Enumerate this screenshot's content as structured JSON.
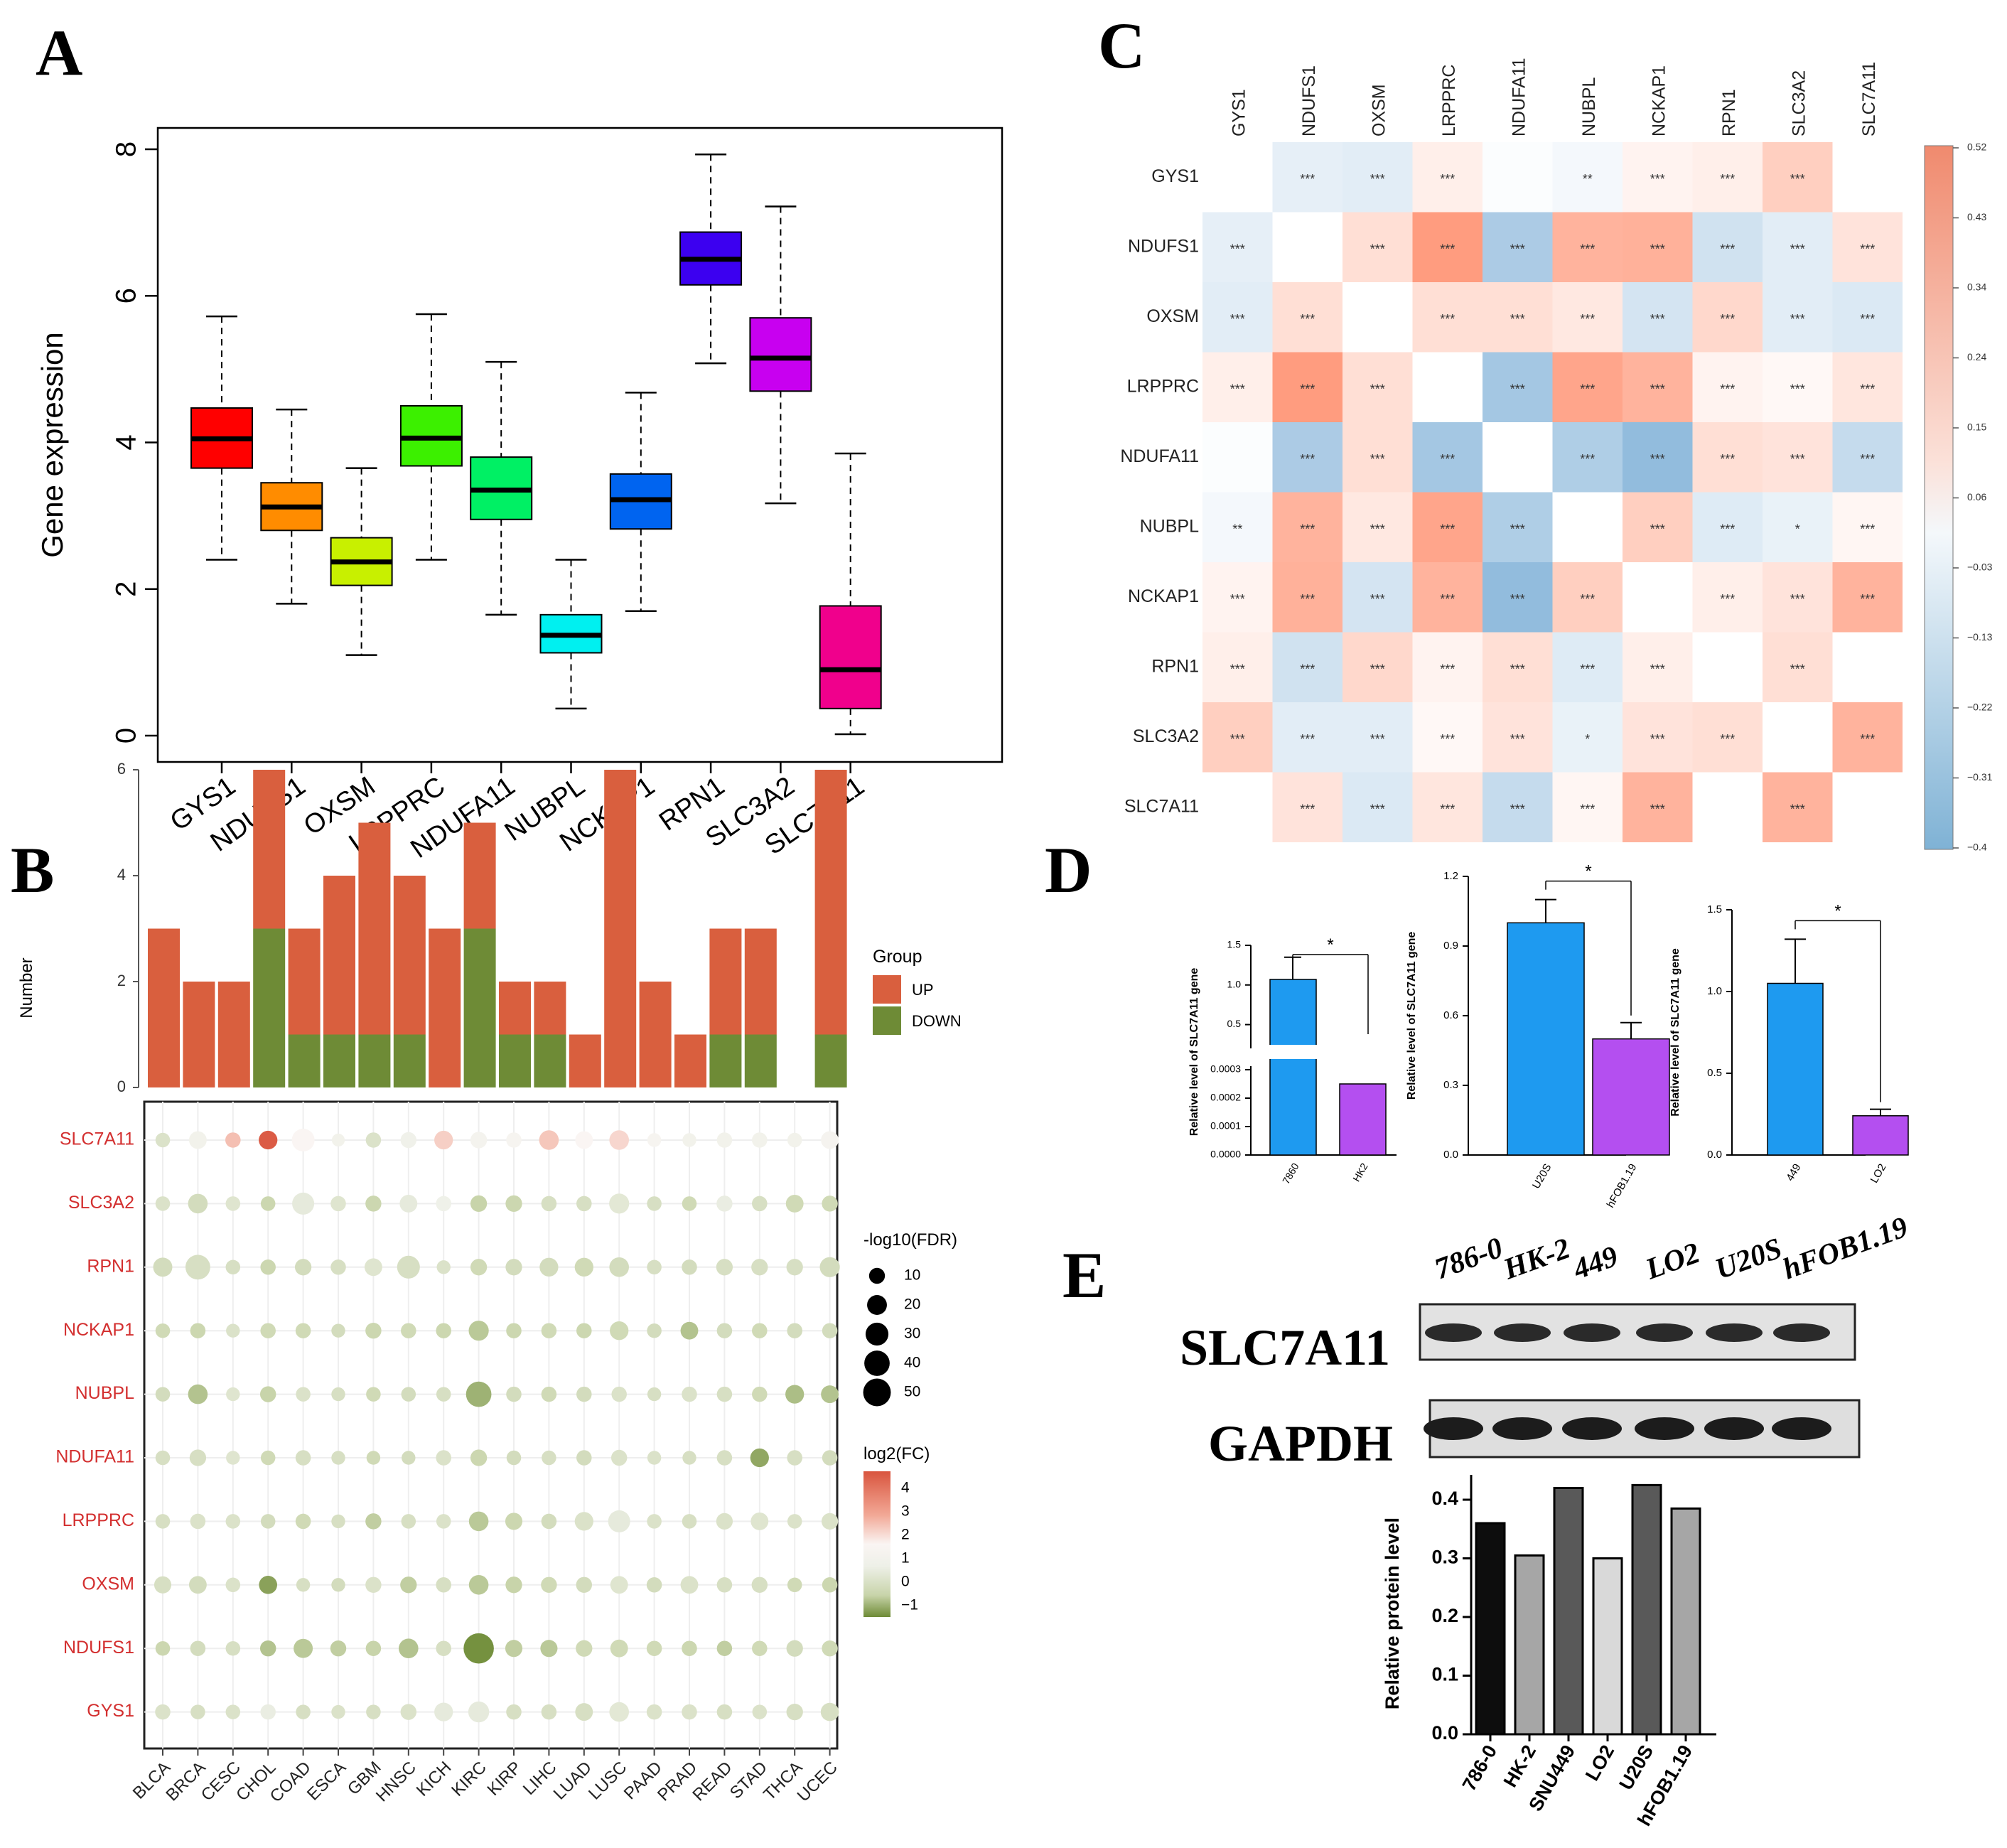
{
  "panel_labels": {
    "A": "A",
    "B": "B",
    "C": "C",
    "D": "D",
    "E": "E"
  },
  "colors": {
    "up": "#d95f3e",
    "down": "#6e8b36",
    "corr_pos": "#f08a6e",
    "corr_neg": "#7fb2d5",
    "bar_786": "#1e9af0",
    "bar_ctrl": "#b44ff0"
  },
  "chart_data": [
    {
      "id": "A",
      "type": "box",
      "ylabel": "Gene expression",
      "xlabel": "",
      "ylim": [
        0,
        8
      ],
      "yticks": [
        "0",
        "2",
        "4",
        "6",
        "8"
      ],
      "categories": [
        "GYS1",
        "NDUFS1",
        "OXSM",
        "LRPPRC",
        "NDUFA11",
        "NUBPL",
        "NCKAP1",
        "RPN1",
        "SLC3A2",
        "SLC7A11"
      ],
      "colors": [
        "#ff0000",
        "#ff8c00",
        "#c8f000",
        "#3cf000",
        "#00f064",
        "#00f0f0",
        "#0064f0",
        "#3c00f0",
        "#c800f0",
        "#f0008c"
      ],
      "boxes": [
        {
          "min": 2.4,
          "q1": 3.65,
          "median": 4.05,
          "q3": 4.47,
          "max": 5.72
        },
        {
          "min": 1.8,
          "q1": 2.8,
          "median": 3.12,
          "q3": 3.45,
          "max": 4.45
        },
        {
          "min": 1.1,
          "q1": 2.05,
          "median": 2.37,
          "q3": 2.7,
          "max": 3.65
        },
        {
          "min": 2.4,
          "q1": 3.68,
          "median": 4.06,
          "q3": 4.5,
          "max": 5.75
        },
        {
          "min": 1.65,
          "q1": 2.95,
          "median": 3.35,
          "q3": 3.8,
          "max": 5.1
        },
        {
          "min": 0.37,
          "q1": 1.13,
          "median": 1.37,
          "q3": 1.65,
          "max": 2.4
        },
        {
          "min": 1.7,
          "q1": 2.82,
          "median": 3.22,
          "q3": 3.57,
          "max": 4.68
        },
        {
          "min": 5.08,
          "q1": 6.15,
          "median": 6.5,
          "q3": 6.87,
          "max": 7.93
        },
        {
          "min": 3.17,
          "q1": 4.7,
          "median": 5.15,
          "q3": 5.7,
          "max": 7.22
        },
        {
          "min": 0.02,
          "q1": 0.37,
          "median": 0.9,
          "q3": 1.77,
          "max": 3.85
        }
      ]
    },
    {
      "id": "B-top",
      "type": "bar",
      "ylabel": "Number",
      "ylim": [
        0,
        6
      ],
      "yticks": [
        "0",
        "2",
        "4",
        "6"
      ],
      "legend_title": "Group",
      "series_names": [
        "UP",
        "DOWN"
      ],
      "categories": [
        "BLCA",
        "BRCA",
        "CESC",
        "CHOL",
        "COAD",
        "ESCA",
        "GBM",
        "HNSC",
        "KICH",
        "KIRC",
        "KIRP",
        "LIHC",
        "LUAD",
        "LUSC",
        "PAAD",
        "PRAD",
        "READ",
        "STAD",
        "THCA",
        "UCEC"
      ],
      "up": [
        3,
        2,
        2,
        3,
        2,
        3,
        4,
        3,
        3,
        2,
        1,
        1,
        1,
        6,
        2,
        1,
        2,
        2,
        0,
        5
      ],
      "down": [
        0,
        0,
        0,
        3,
        1,
        1,
        1,
        1,
        0,
        3,
        1,
        1,
        0,
        0,
        0,
        0,
        1,
        1,
        0,
        1
      ]
    },
    {
      "id": "B-bottom",
      "type": "bubble",
      "genes": [
        "SLC7A11",
        "SLC3A2",
        "RPN1",
        "NCKAP1",
        "NUBPL",
        "NDUFA11",
        "LRPPRC",
        "OXSM",
        "NDUFS1",
        "GYS1"
      ],
      "cancers": [
        "BLCA",
        "BRCA",
        "CESC",
        "CHOL",
        "COAD",
        "ESCA",
        "GBM",
        "HNSC",
        "KICH",
        "KIRC",
        "KIRP",
        "LIHC",
        "LUAD",
        "LUSC",
        "PAAD",
        "PRAD",
        "READ",
        "STAD",
        "THCA",
        "UCEC"
      ],
      "size_legend_title": "-log10(FDR)",
      "size_legend": [
        "10",
        "20",
        "30",
        "40",
        "50"
      ],
      "color_legend_title": "log2(FC)",
      "color_legend": [
        "4",
        "3",
        "2",
        "1",
        "0",
        "−1"
      ],
      "log2fc": [
        [
          0.5,
          1.3,
          2.7,
          4.2,
          2.0,
          1.3,
          0.5,
          1.2,
          2.5,
          1.5,
          1.7,
          2.6,
          2.0,
          2.4,
          1.7,
          1.3,
          1.3,
          1.3,
          1.3,
          1.6
        ],
        [
          0.5,
          0.3,
          0.6,
          0.1,
          0.8,
          0.6,
          0.1,
          0.8,
          1.1,
          0.0,
          0.1,
          0.4,
          0.4,
          0.7,
          0.4,
          0.2,
          0.9,
          0.4,
          0.2,
          0.2
        ],
        [
          0.3,
          0.4,
          0.4,
          0.1,
          0.3,
          0.4,
          0.6,
          0.4,
          0.5,
          0.2,
          0.3,
          0.3,
          0.2,
          0.3,
          0.4,
          0.3,
          0.4,
          0.4,
          0.4,
          0.3
        ],
        [
          0.2,
          0.1,
          0.5,
          0.2,
          0.2,
          0.3,
          0.1,
          0.2,
          0.1,
          -0.2,
          0.1,
          0.2,
          0.1,
          0.2,
          0.3,
          -0.3,
          0.3,
          0.2,
          0.3,
          0.3
        ],
        [
          0.3,
          -0.3,
          0.6,
          0.0,
          0.5,
          0.4,
          0.2,
          0.3,
          0.4,
          -0.6,
          0.3,
          0.2,
          0.3,
          0.5,
          0.4,
          0.5,
          0.4,
          0.2,
          -0.4,
          -0.3
        ],
        [
          0.4,
          0.4,
          0.6,
          0.2,
          0.4,
          0.4,
          0.2,
          0.3,
          0.5,
          0.1,
          0.3,
          0.4,
          0.3,
          0.5,
          0.5,
          0.4,
          0.4,
          -0.8,
          0.4,
          0.3
        ],
        [
          0.4,
          0.5,
          0.5,
          0.3,
          0.2,
          0.4,
          -0.1,
          0.4,
          0.5,
          -0.2,
          0.1,
          0.3,
          0.5,
          0.8,
          0.5,
          0.4,
          0.5,
          0.6,
          0.5,
          0.5
        ],
        [
          0.4,
          0.3,
          0.5,
          -0.9,
          0.4,
          0.3,
          0.5,
          -0.1,
          0.4,
          -0.2,
          0.0,
          0.2,
          0.3,
          0.6,
          0.3,
          0.5,
          0.4,
          0.4,
          0.2,
          0.1
        ],
        [
          0.1,
          0.3,
          0.4,
          -0.3,
          -0.2,
          -0.1,
          0.0,
          -0.3,
          0.4,
          -1.2,
          -0.1,
          -0.2,
          0.2,
          0.2,
          0.2,
          0.1,
          -0.1,
          0.2,
          0.3,
          0.2
        ],
        [
          0.5,
          0.4,
          0.5,
          0.9,
          0.4,
          0.5,
          0.4,
          0.5,
          0.8,
          0.8,
          0.4,
          0.4,
          0.4,
          0.7,
          0.5,
          0.5,
          0.4,
          0.5,
          0.4,
          0.4
        ]
      ],
      "neglog10fdr": [
        [
          5,
          10,
          6,
          12,
          22,
          3,
          6,
          7,
          12,
          8,
          6,
          14,
          10,
          14,
          4,
          4,
          6,
          6,
          5,
          10
        ],
        [
          5,
          14,
          5,
          5,
          20,
          6,
          7,
          10,
          6,
          8,
          8,
          6,
          6,
          15,
          5,
          5,
          7,
          6,
          10,
          7
        ],
        [
          13,
          28,
          5,
          6,
          8,
          6,
          10,
          22,
          4,
          8,
          8,
          12,
          12,
          14,
          5,
          6,
          8,
          8,
          8,
          15
        ],
        [
          5,
          6,
          4,
          6,
          6,
          4,
          7,
          6,
          6,
          15,
          6,
          6,
          6,
          12,
          5,
          10,
          6,
          6,
          6,
          6
        ],
        [
          5,
          14,
          4,
          7,
          5,
          4,
          5,
          5,
          5,
          30,
          6,
          6,
          6,
          6,
          4,
          6,
          6,
          6,
          12,
          10
        ],
        [
          5,
          8,
          4,
          5,
          6,
          4,
          4,
          4,
          6,
          8,
          5,
          5,
          6,
          7,
          4,
          4,
          6,
          12,
          6,
          6
        ],
        [
          5,
          6,
          5,
          5,
          6,
          4,
          7,
          5,
          5,
          14,
          9,
          6,
          12,
          20,
          5,
          5,
          8,
          10,
          5,
          8
        ],
        [
          9,
          10,
          5,
          11,
          4,
          4,
          7,
          8,
          6,
          14,
          8,
          7,
          7,
          10,
          6,
          10,
          6,
          7,
          5,
          6
        ],
        [
          5,
          6,
          5,
          7,
          13,
          7,
          6,
          14,
          6,
          48,
          9,
          9,
          8,
          10,
          6,
          6,
          6,
          6,
          8,
          7
        ],
        [
          6,
          5,
          5,
          6,
          5,
          4,
          5,
          7,
          12,
          17,
          6,
          6,
          10,
          14,
          6,
          6,
          6,
          5,
          8,
          11
        ]
      ]
    },
    {
      "id": "C",
      "type": "heatmap",
      "rows": [
        "GYS1",
        "NDUFS1",
        "OXSM",
        "LRPPRC",
        "NDUFA11",
        "NUBPL",
        "NCKAP1",
        "RPN1",
        "SLC3A2",
        "SLC7A11"
      ],
      "cols": [
        "GYS1",
        "NDUFS1",
        "OXSM",
        "LRPPRC",
        "NDUFA11",
        "NUBPL",
        "NCKAP1",
        "RPN1",
        "SLC3A2",
        "SLC7A11"
      ],
      "scale": [
        "0.52",
        "0.43",
        "0.34",
        "0.24",
        "0.15",
        "0.06",
        "−0.03",
        "−0.13",
        "−0.22",
        "−0.31",
        "−0.4"
      ],
      "values": [
        [
          null,
          -0.07,
          -0.08,
          0.07,
          -0.01,
          -0.03,
          0.05,
          0.07,
          0.21,
          null
        ],
        [
          -0.07,
          null,
          0.14,
          0.43,
          -0.23,
          0.33,
          0.34,
          -0.13,
          -0.08,
          0.12
        ],
        [
          -0.08,
          0.14,
          null,
          0.14,
          0.14,
          0.1,
          -0.12,
          0.17,
          -0.08,
          -0.1
        ],
        [
          0.07,
          0.43,
          0.14,
          null,
          -0.25,
          0.39,
          0.33,
          0.05,
          0.03,
          0.11
        ],
        [
          -0.01,
          -0.23,
          0.14,
          -0.25,
          null,
          -0.22,
          -0.3,
          0.14,
          0.12,
          -0.16
        ],
        [
          -0.03,
          0.33,
          0.1,
          0.39,
          -0.22,
          null,
          0.21,
          -0.09,
          -0.06,
          0.04
        ],
        [
          0.05,
          0.34,
          -0.12,
          0.33,
          -0.3,
          0.21,
          null,
          0.07,
          0.12,
          0.33
        ],
        [
          0.07,
          -0.13,
          0.17,
          0.05,
          0.14,
          -0.09,
          0.07,
          null,
          0.14,
          0.0
        ],
        [
          0.21,
          -0.08,
          -0.08,
          0.03,
          0.12,
          -0.06,
          0.12,
          0.14,
          null,
          0.33
        ],
        [
          null,
          0.12,
          -0.1,
          0.11,
          -0.16,
          0.04,
          0.33,
          0.0,
          0.33,
          null
        ]
      ],
      "stars": [
        [
          "",
          "***",
          "***",
          "***",
          "",
          "**",
          "***",
          "***",
          "***",
          ""
        ],
        [
          "***",
          "",
          "***",
          "***",
          "***",
          "***",
          "***",
          "***",
          "***",
          "***"
        ],
        [
          "***",
          "***",
          "",
          "***",
          "***",
          "***",
          "***",
          "***",
          "***",
          "***"
        ],
        [
          "***",
          "***",
          "***",
          "",
          "***",
          "***",
          "***",
          "***",
          "***",
          "***"
        ],
        [
          "",
          "***",
          "***",
          "***",
          "",
          "***",
          "***",
          "***",
          "***",
          "***"
        ],
        [
          "**",
          "***",
          "***",
          "***",
          "***",
          "",
          "***",
          "***",
          "*",
          "***"
        ],
        [
          "***",
          "***",
          "***",
          "***",
          "***",
          "***",
          "",
          "***",
          "***",
          "***"
        ],
        [
          "***",
          "***",
          "***",
          "***",
          "***",
          "***",
          "***",
          "",
          "***",
          ""
        ],
        [
          "***",
          "***",
          "***",
          "***",
          "***",
          "*",
          "***",
          "***",
          "",
          "***"
        ],
        [
          "",
          "***",
          "***",
          "***",
          "***",
          "***",
          "***",
          "",
          "***",
          ""
        ]
      ]
    },
    {
      "id": "D1",
      "type": "bar",
      "ylabel": "Relative level of SLC7A11 gene",
      "categories": [
        "7860",
        "HK2"
      ],
      "values": [
        1.07,
        0.00025
      ],
      "yticks_upper": [
        "0.5",
        "1.0",
        "1.5"
      ],
      "yticks_lower": [
        "0.0000",
        "0.0001",
        "0.0002",
        "0.0003"
      ],
      "sig": "*"
    },
    {
      "id": "D2",
      "type": "bar",
      "ylabel": "Relative level of SLC7A11 gene",
      "ylim": [
        0,
        1.2
      ],
      "yticks": [
        "0.0",
        "0.3",
        "0.6",
        "0.9",
        "1.2"
      ],
      "categories": [
        "U20S",
        "hFOB1.19"
      ],
      "values": [
        1.0,
        0.5
      ],
      "errors": [
        0.1,
        0.07
      ],
      "sig": "*"
    },
    {
      "id": "D3",
      "type": "bar",
      "ylabel": "Relative level of SLC7A11 gene",
      "ylim": [
        0,
        1.5
      ],
      "yticks": [
        "0.0",
        "0.5",
        "1.0",
        "1.5"
      ],
      "categories": [
        "449",
        "LO2"
      ],
      "values": [
        1.05,
        0.24
      ],
      "errors": [
        0.27,
        0.04
      ],
      "sig": "*"
    },
    {
      "id": "E-bar",
      "type": "bar",
      "ylabel": "Relative protein level",
      "ylim": [
        0,
        0.4
      ],
      "yticks": [
        "0.0",
        "0.1",
        "0.2",
        "0.3",
        "0.4"
      ],
      "categories": [
        "786-0",
        "HK-2",
        "SNU449",
        "LO2",
        "U20S",
        "hFOB1.19"
      ],
      "values": [
        0.36,
        0.305,
        0.42,
        0.3,
        0.425,
        0.385
      ],
      "bar_colors": [
        "#0d0d0d",
        "#a6a6a6",
        "#595959",
        "#d9d9d9",
        "#595959",
        "#a6a6a6"
      ]
    }
  ],
  "blot": {
    "lanes": [
      "786-0",
      "HK-2",
      "449",
      "LO2",
      "U20S",
      "hFOB1.19"
    ],
    "row1": "SLC7A11",
    "row2": "GAPDH"
  }
}
